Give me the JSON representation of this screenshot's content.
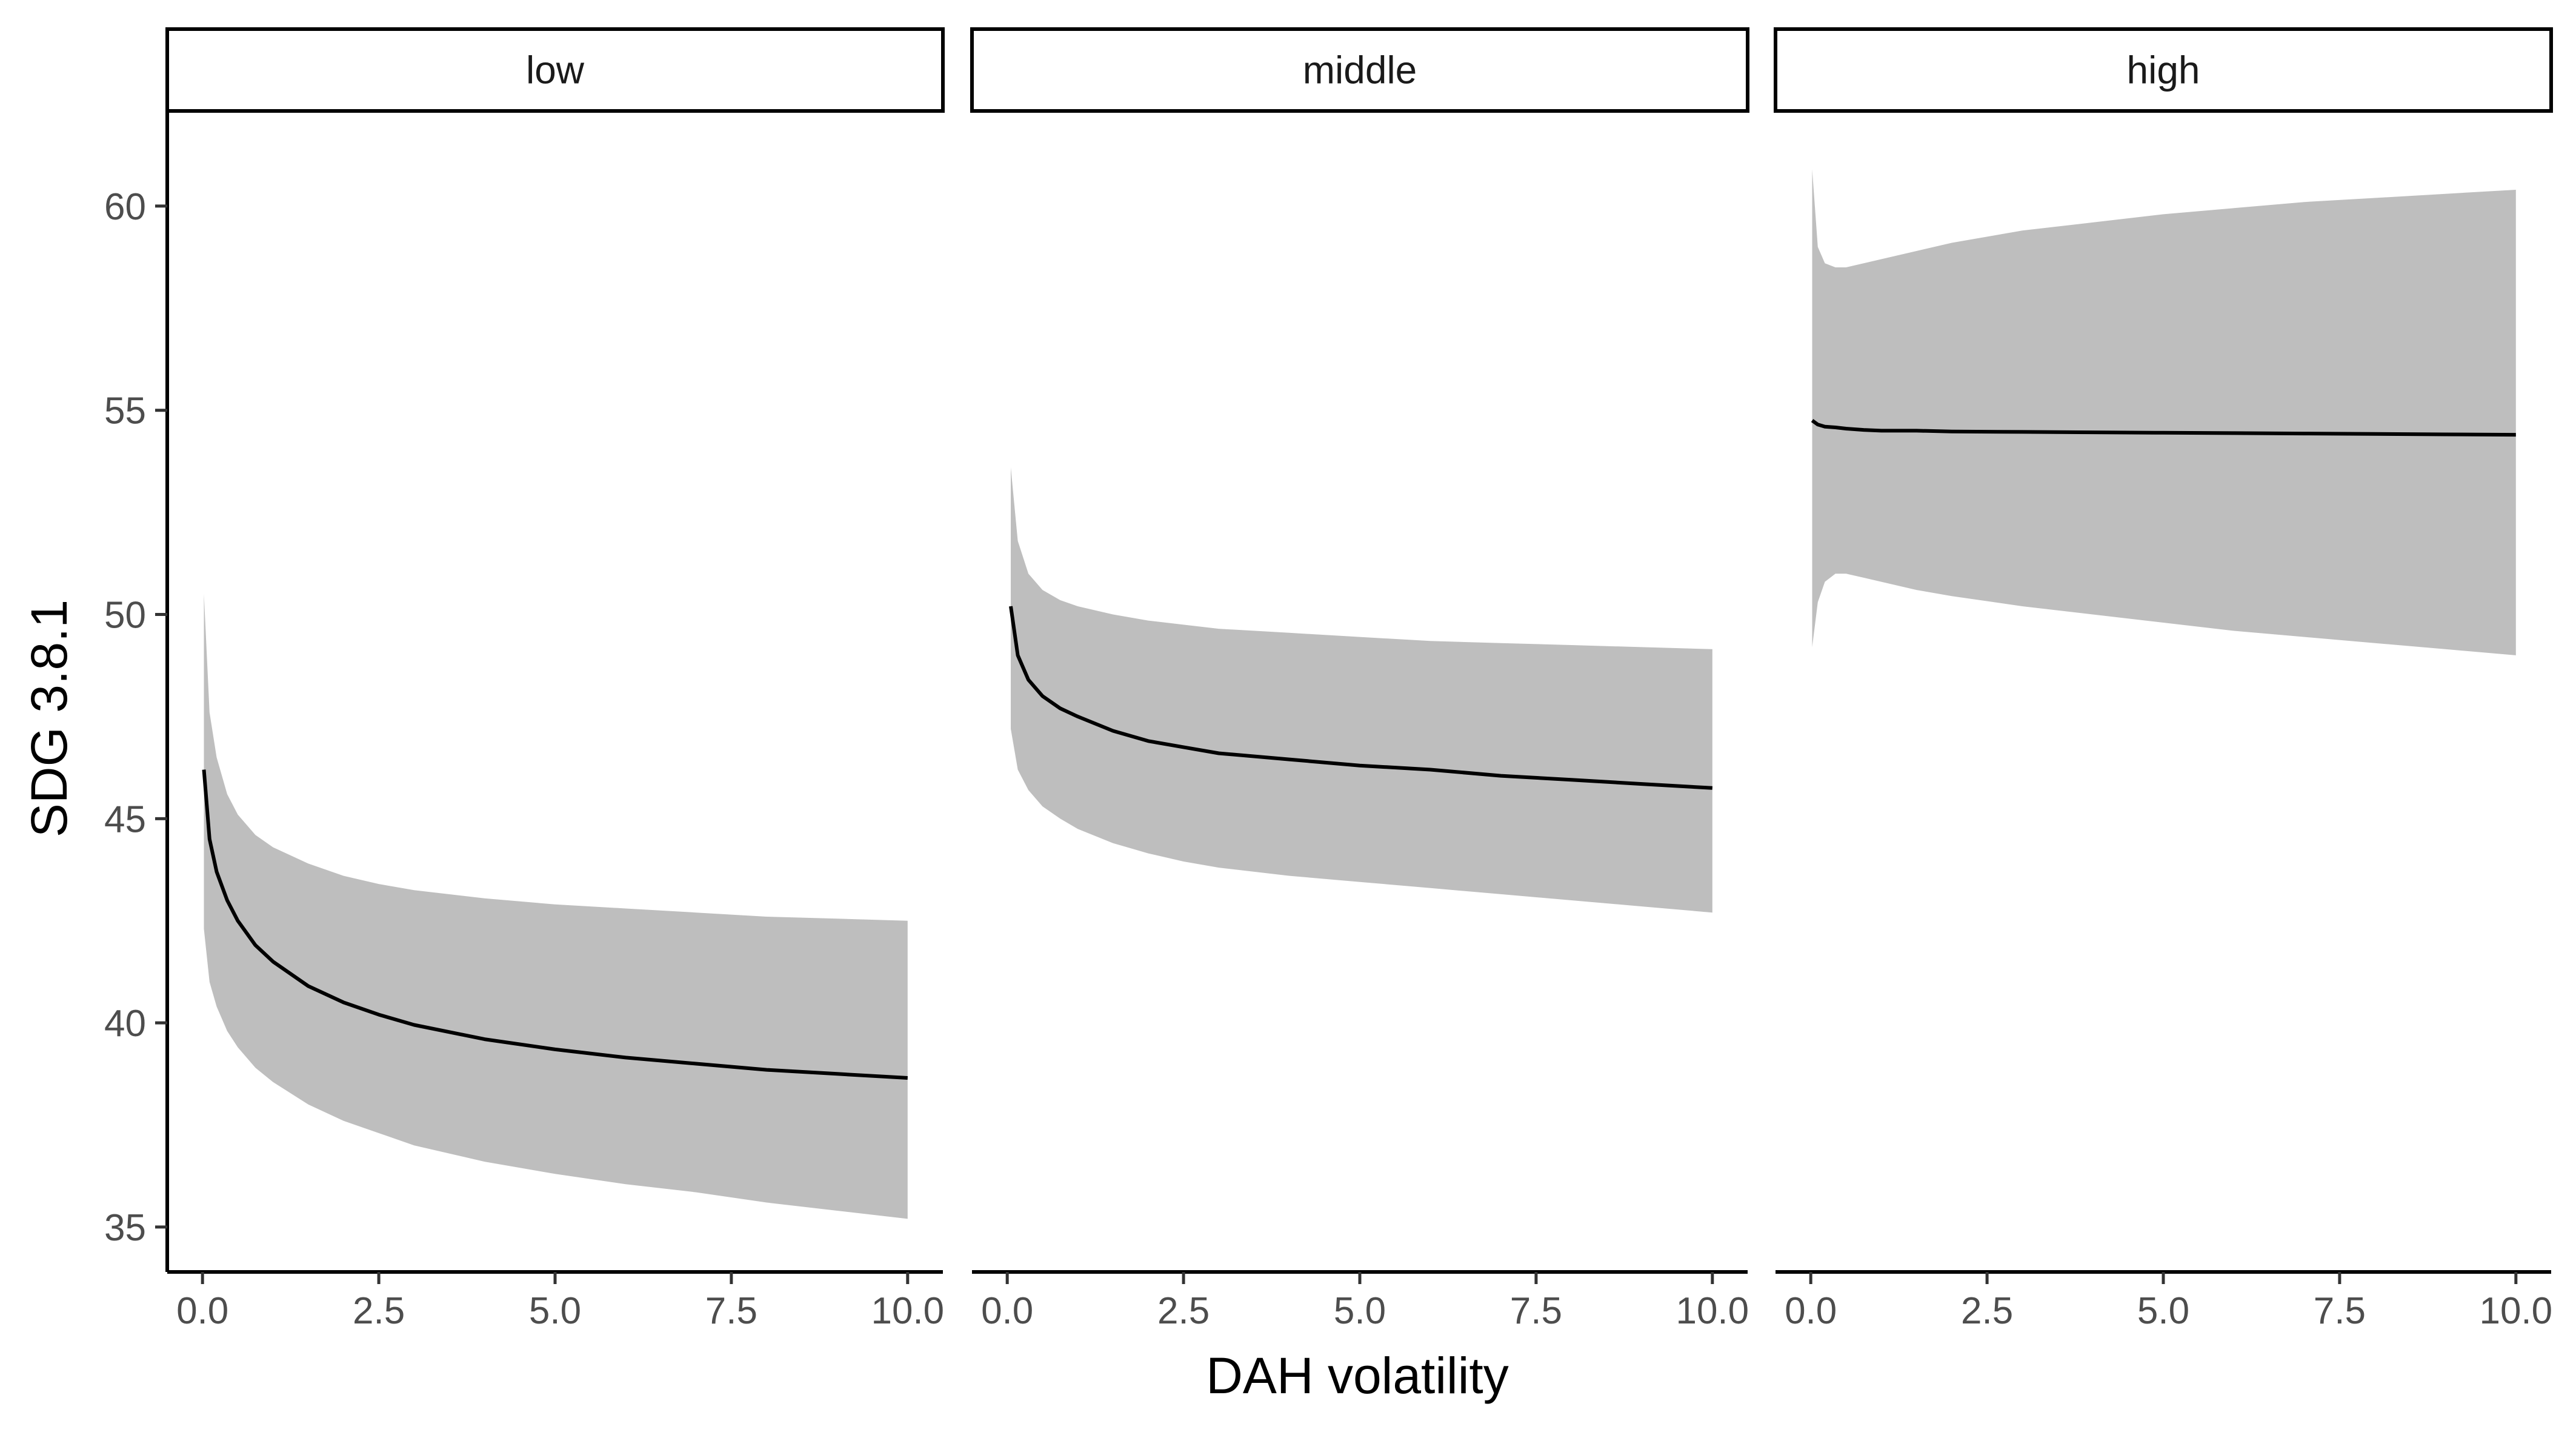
{
  "chart_data": {
    "type": "line",
    "xlabel": "DAH volatility",
    "ylabel": "SDG 3.8.1",
    "xlim": [
      -0.5,
      10.5
    ],
    "ylim": [
      33.9,
      62.3
    ],
    "x_ticks": [
      0,
      2.5,
      5,
      7.5,
      10
    ],
    "x_tick_labels": [
      "0.0",
      "2.5",
      "5.0",
      "7.5",
      "10.0"
    ],
    "y_ticks": [
      35,
      40,
      45,
      50,
      55,
      60
    ],
    "y_tick_labels": [
      "35",
      "40",
      "45",
      "50",
      "55",
      "60"
    ],
    "grid": false,
    "ribbon_color": "#bebebe",
    "line_color": "#000000",
    "panels": [
      {
        "label": "low",
        "x": [
          0.02,
          0.1,
          0.2,
          0.35,
          0.5,
          0.75,
          1.0,
          1.5,
          2.0,
          2.5,
          3.0,
          4.0,
          5.0,
          6.0,
          7.0,
          8.0,
          9.0,
          10.0
        ],
        "y": [
          46.2,
          44.5,
          43.7,
          43.0,
          42.5,
          41.9,
          41.5,
          40.9,
          40.5,
          40.2,
          39.95,
          39.6,
          39.35,
          39.15,
          39.0,
          38.85,
          38.75,
          38.65
        ],
        "lower": [
          42.3,
          41.0,
          40.4,
          39.8,
          39.4,
          38.9,
          38.55,
          38.0,
          37.6,
          37.3,
          37.0,
          36.6,
          36.3,
          36.05,
          35.85,
          35.6,
          35.4,
          35.2
        ],
        "upper": [
          50.5,
          47.6,
          46.5,
          45.6,
          45.1,
          44.6,
          44.3,
          43.9,
          43.6,
          43.4,
          43.25,
          43.05,
          42.9,
          42.8,
          42.7,
          42.6,
          42.55,
          42.5
        ]
      },
      {
        "label": "middle",
        "x": [
          0.05,
          0.15,
          0.3,
          0.5,
          0.75,
          1.0,
          1.5,
          2.0,
          2.5,
          3.0,
          4.0,
          5.0,
          6.0,
          7.0,
          8.0,
          9.0,
          10.0
        ],
        "y": [
          50.2,
          49.0,
          48.4,
          48.0,
          47.7,
          47.5,
          47.15,
          46.9,
          46.75,
          46.6,
          46.45,
          46.3,
          46.2,
          46.05,
          45.95,
          45.85,
          45.75
        ],
        "lower": [
          47.2,
          46.2,
          45.7,
          45.3,
          45.0,
          44.75,
          44.4,
          44.15,
          43.95,
          43.8,
          43.6,
          43.45,
          43.3,
          43.15,
          43.0,
          42.85,
          42.7
        ],
        "upper": [
          53.6,
          51.8,
          51.0,
          50.6,
          50.35,
          50.2,
          50.0,
          49.85,
          49.75,
          49.65,
          49.55,
          49.45,
          49.35,
          49.3,
          49.25,
          49.2,
          49.15
        ]
      },
      {
        "label": "high",
        "x": [
          0.02,
          0.1,
          0.2,
          0.35,
          0.5,
          0.75,
          1.0,
          1.5,
          2.0,
          3.0,
          4.0,
          5.0,
          6.0,
          7.0,
          8.0,
          9.0,
          10.0
        ],
        "y": [
          54.75,
          54.65,
          54.6,
          54.58,
          54.55,
          54.52,
          54.5,
          54.5,
          54.48,
          54.47,
          54.46,
          54.45,
          54.44,
          54.43,
          54.42,
          54.41,
          54.4
        ],
        "lower": [
          49.2,
          50.3,
          50.8,
          51.0,
          51.0,
          50.9,
          50.8,
          50.6,
          50.45,
          50.2,
          50.0,
          49.8,
          49.6,
          49.45,
          49.3,
          49.15,
          49.0
        ],
        "upper": [
          60.9,
          59.0,
          58.6,
          58.5,
          58.5,
          58.6,
          58.7,
          58.9,
          59.1,
          59.4,
          59.6,
          59.8,
          59.95,
          60.1,
          60.2,
          60.3,
          60.4
        ]
      }
    ]
  }
}
